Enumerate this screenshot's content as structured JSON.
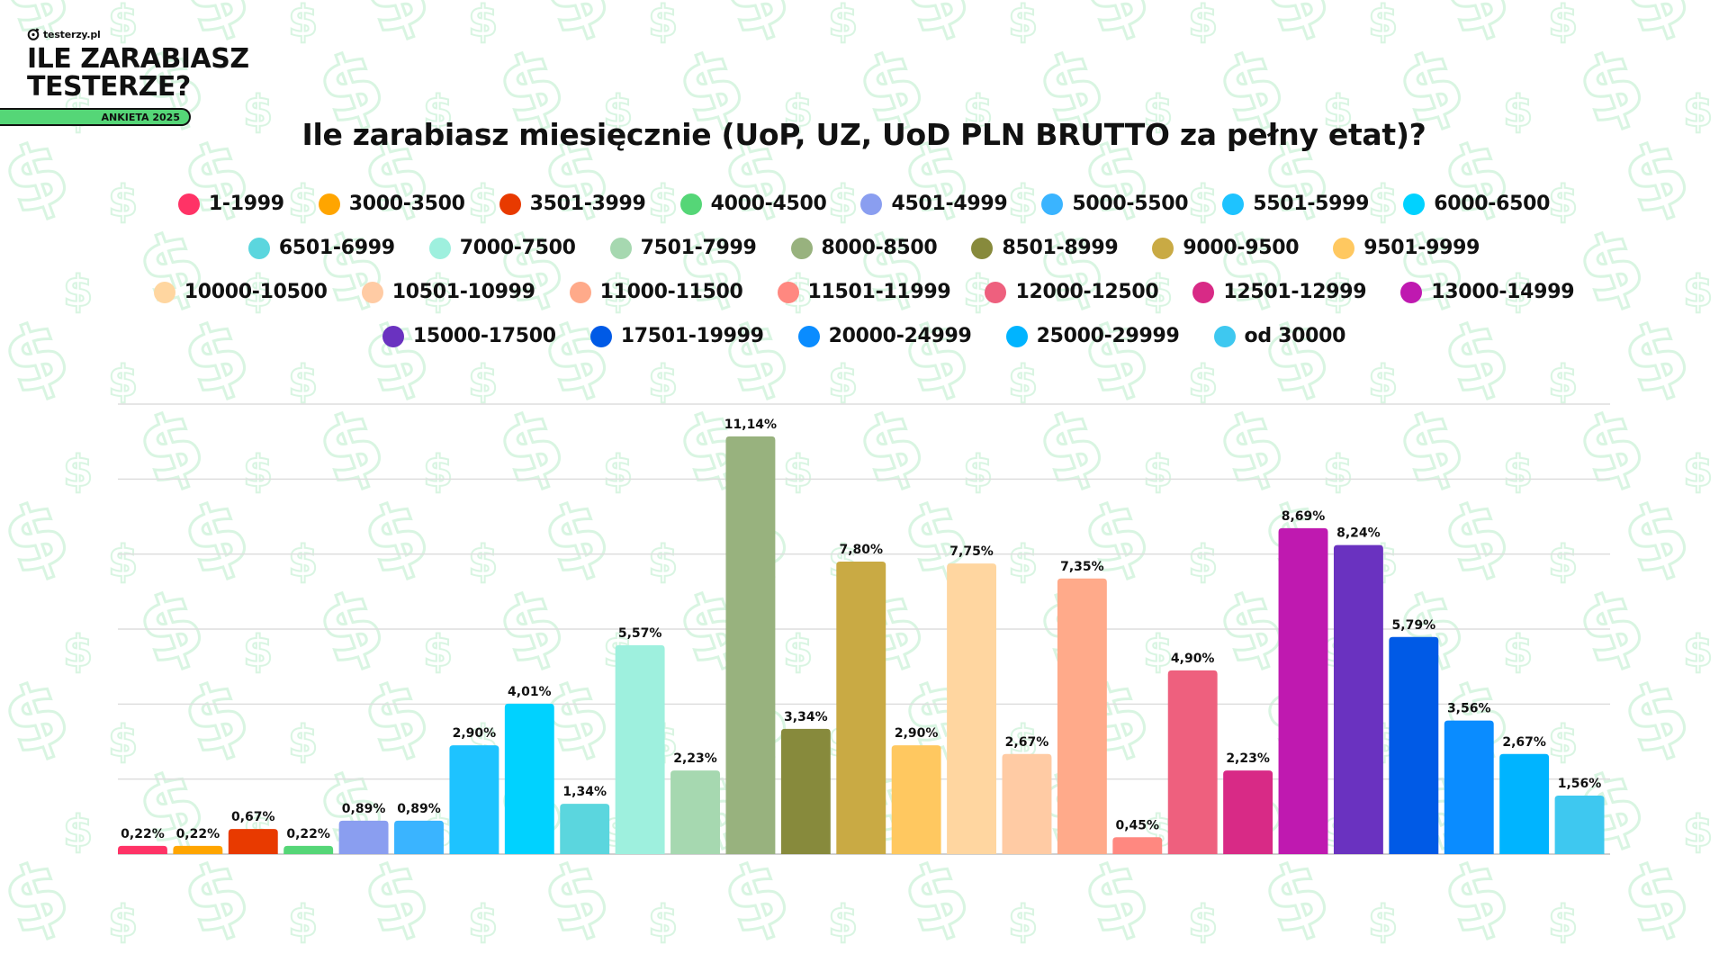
{
  "brand": {
    "site": "testerzy.pl",
    "title_line1": "ILE ZARABIASZ",
    "title_line2": "TESTERZE?",
    "badge": "ANKIETA 2025",
    "badge_color": "#55d677"
  },
  "background": {
    "pattern_icon": "dollar-sign-icon",
    "pattern_color": "#d9f5e2"
  },
  "chart_data": {
    "type": "bar",
    "title": "Ile zarabiasz miesięcznie (UoP, UZ, UoD PLN BRUTTO za pełny etat)?",
    "xlabel": "",
    "ylabel": "",
    "ylim": [
      0,
      12
    ],
    "yticks": [
      0,
      2,
      4,
      6,
      8,
      10,
      12
    ],
    "grid": true,
    "legend_position": "top",
    "value_format": "percent-comma",
    "categories": [
      "1-1999",
      "3000-3500",
      "3501-3999",
      "4000-4500",
      "4501-4999",
      "5000-5500",
      "5501-5999",
      "6000-6500",
      "6501-6999",
      "7000-7500",
      "7501-7999",
      "8000-8500",
      "8501-8999",
      "9000-9500",
      "9501-9999",
      "10000-10500",
      "10501-10999",
      "11000-11500",
      "11501-11999",
      "12000-12500",
      "12501-12999",
      "13000-14999",
      "15000-17500",
      "17501-19999",
      "20000-24999",
      "25000-29999",
      "od 30000"
    ],
    "values": [
      0.22,
      0.22,
      0.67,
      0.22,
      0.89,
      0.89,
      2.9,
      4.01,
      1.34,
      5.57,
      2.23,
      11.14,
      3.34,
      7.8,
      2.9,
      7.75,
      2.67,
      7.35,
      0.45,
      4.9,
      2.23,
      8.69,
      8.24,
      5.79,
      3.56,
      2.67,
      1.56
    ],
    "value_labels": [
      "0,22%",
      "0,22%",
      "0,67%",
      "0,22%",
      "0,89%",
      "0,89%",
      "2,90%",
      "4,01%",
      "1,34%",
      "5,57%",
      "2,23%",
      "11,14%",
      "3,34%",
      "7,80%",
      "2,90%",
      "7,75%",
      "2,67%",
      "7,35%",
      "0,45%",
      "4,90%",
      "2,23%",
      "8,69%",
      "8,24%",
      "5,79%",
      "3,56%",
      "2,67%",
      "1,56%"
    ],
    "colors": [
      "#ff3366",
      "#ffa500",
      "#e83a00",
      "#55d677",
      "#8a9ef0",
      "#3ab4ff",
      "#1ec3ff",
      "#00d2ff",
      "#5bd6de",
      "#9ef0de",
      "#a6d8b0",
      "#98b27e",
      "#878a3c",
      "#c9aa44",
      "#ffc860",
      "#ffd6a0",
      "#ffcba4",
      "#ffaa8a",
      "#ff8880",
      "#ee607e",
      "#d82a86",
      "#bf19b0",
      "#6a32c0",
      "#005ae6",
      "#0a8cff",
      "#00b4ff",
      "#3ec8f0"
    ],
    "legend_rows": [
      8,
      7,
      7,
      5
    ]
  }
}
